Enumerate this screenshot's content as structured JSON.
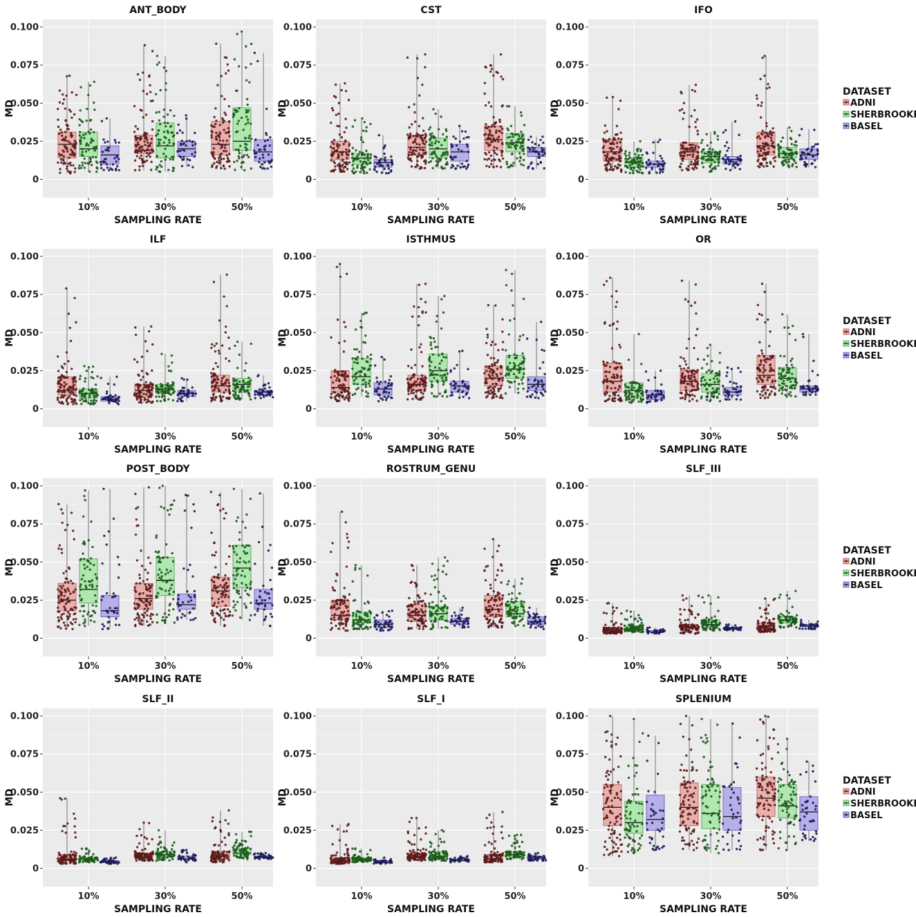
{
  "chart_data": {
    "type": "boxplot",
    "x_label": "SAMPLING RATE",
    "y_label": "MD",
    "categories": [
      "10%",
      "30%",
      "50%"
    ],
    "y_range": [
      -0.012,
      0.105
    ],
    "y_ticks": [
      0,
      0.025,
      0.05,
      0.075,
      0.1
    ],
    "y_tick_labels": [
      "0",
      "0.025",
      "0.050",
      "0.075",
      "0.100"
    ],
    "legend": {
      "title": "DATASET",
      "entries": [
        {
          "name": "ADNI",
          "fill": "#e8a6a2",
          "stroke": "#b85450",
          "dot": "#5a1a1a"
        },
        {
          "name": "SHERBROOKE",
          "fill": "#a6e6a6",
          "stroke": "#4e9a4e",
          "dot": "#1a5a1a"
        },
        {
          "name": "BASEL",
          "fill": "#aba6e6",
          "stroke": "#5a54b0",
          "dot": "#1a1a5a"
        }
      ]
    },
    "panels": [
      {
        "title": "ANT_BODY",
        "series": {
          "ADNI": [
            [
              0.004,
              0.014,
              0.023,
              0.031,
              0.068
            ],
            [
              0.006,
              0.017,
              0.019,
              0.029,
              0.088
            ],
            [
              0.007,
              0.016,
              0.023,
              0.038,
              0.089
            ]
          ],
          "SHERBROOKE": [
            [
              0.005,
              0.015,
              0.02,
              0.031,
              0.064
            ],
            [
              0.005,
              0.014,
              0.022,
              0.037,
              0.081
            ],
            [
              0.006,
              0.019,
              0.025,
              0.047,
              0.097
            ]
          ],
          "BASEL": [
            [
              0.006,
              0.01,
              0.016,
              0.022,
              0.04
            ],
            [
              0.008,
              0.015,
              0.02,
              0.025,
              0.042
            ],
            [
              0.007,
              0.012,
              0.018,
              0.026,
              0.083
            ]
          ]
        }
      },
      {
        "title": "CST",
        "series": {
          "ADNI": [
            [
              0.005,
              0.013,
              0.018,
              0.025,
              0.063
            ],
            [
              0.007,
              0.016,
              0.021,
              0.029,
              0.082
            ],
            [
              0.008,
              0.019,
              0.026,
              0.035,
              0.082
            ]
          ],
          "SHERBROOKE": [
            [
              0.004,
              0.01,
              0.014,
              0.017,
              0.04
            ],
            [
              0.007,
              0.014,
              0.02,
              0.027,
              0.046
            ],
            [
              0.008,
              0.018,
              0.024,
              0.03,
              0.048
            ]
          ],
          "BASEL": [
            [
              0.004,
              0.008,
              0.011,
              0.013,
              0.029
            ],
            [
              0.007,
              0.012,
              0.018,
              0.023,
              0.035
            ],
            [
              0.007,
              0.015,
              0.018,
              0.021,
              0.028
            ]
          ]
        }
      },
      {
        "title": "IFO",
        "series": {
          "ADNI": [
            [
              0.005,
              0.012,
              0.018,
              0.026,
              0.054
            ],
            [
              0.006,
              0.013,
              0.018,
              0.024,
              0.062
            ],
            [
              0.008,
              0.016,
              0.022,
              0.031,
              0.081
            ]
          ],
          "SHERBROOKE": [
            [
              0.004,
              0.008,
              0.011,
              0.014,
              0.025
            ],
            [
              0.005,
              0.011,
              0.015,
              0.018,
              0.031
            ],
            [
              0.008,
              0.014,
              0.017,
              0.021,
              0.034
            ]
          ],
          "BASEL": [
            [
              0.004,
              0.008,
              0.01,
              0.012,
              0.026
            ],
            [
              0.006,
              0.01,
              0.013,
              0.015,
              0.038
            ],
            [
              0.008,
              0.013,
              0.016,
              0.02,
              0.033
            ]
          ]
        }
      },
      {
        "title": "ILF",
        "series": {
          "ADNI": [
            [
              0.003,
              0.009,
              0.012,
              0.021,
              0.079
            ],
            [
              0.004,
              0.008,
              0.012,
              0.016,
              0.054
            ],
            [
              0.005,
              0.011,
              0.015,
              0.022,
              0.088
            ]
          ],
          "SHERBROOKE": [
            [
              0.003,
              0.007,
              0.01,
              0.013,
              0.028
            ],
            [
              0.005,
              0.01,
              0.013,
              0.016,
              0.036
            ],
            [
              0.006,
              0.012,
              0.016,
              0.02,
              0.044
            ]
          ],
          "BASEL": [
            [
              0.003,
              0.005,
              0.006,
              0.008,
              0.021
            ],
            [
              0.005,
              0.008,
              0.01,
              0.012,
              0.02
            ],
            [
              0.007,
              0.009,
              0.011,
              0.012,
              0.022
            ]
          ]
        }
      },
      {
        "title": "ISTHMUS",
        "series": {
          "ADNI": [
            [
              0.005,
              0.011,
              0.014,
              0.025,
              0.095
            ],
            [
              0.006,
              0.012,
              0.016,
              0.022,
              0.082
            ],
            [
              0.007,
              0.015,
              0.02,
              0.028,
              0.068
            ]
          ],
          "SHERBROOKE": [
            [
              0.008,
              0.016,
              0.021,
              0.033,
              0.063
            ],
            [
              0.008,
              0.018,
              0.025,
              0.036,
              0.074
            ],
            [
              0.01,
              0.02,
              0.026,
              0.035,
              0.091
            ]
          ],
          "BASEL": [
            [
              0.005,
              0.009,
              0.013,
              0.017,
              0.034
            ],
            [
              0.007,
              0.011,
              0.015,
              0.018,
              0.038
            ],
            [
              0.007,
              0.012,
              0.016,
              0.021,
              0.057
            ]
          ]
        }
      },
      {
        "title": "OR",
        "series": {
          "ADNI": [
            [
              0.005,
              0.011,
              0.018,
              0.03,
              0.086
            ],
            [
              0.005,
              0.012,
              0.018,
              0.025,
              0.084
            ],
            [
              0.007,
              0.016,
              0.022,
              0.035,
              0.082
            ]
          ],
          "SHERBROOKE": [
            [
              0.004,
              0.008,
              0.012,
              0.017,
              0.049
            ],
            [
              0.005,
              0.011,
              0.016,
              0.023,
              0.042
            ],
            [
              0.008,
              0.015,
              0.02,
              0.027,
              0.062
            ]
          ],
          "BASEL": [
            [
              0.004,
              0.006,
              0.009,
              0.012,
              0.025
            ],
            [
              0.006,
              0.009,
              0.011,
              0.014,
              0.027
            ],
            [
              0.009,
              0.011,
              0.013,
              0.015,
              0.049
            ]
          ]
        }
      },
      {
        "title": "POST_BODY",
        "series": {
          "ADNI": [
            [
              0.006,
              0.018,
              0.025,
              0.036,
              0.088
            ],
            [
              0.008,
              0.019,
              0.026,
              0.036,
              0.099
            ],
            [
              0.008,
              0.021,
              0.031,
              0.04,
              0.096
            ]
          ],
          "SHERBROOKE": [
            [
              0.008,
              0.023,
              0.032,
              0.052,
              0.097
            ],
            [
              0.01,
              0.028,
              0.038,
              0.053,
              0.1
            ],
            [
              0.012,
              0.033,
              0.046,
              0.061,
              0.098
            ]
          ],
          "BASEL": [
            [
              0.006,
              0.014,
              0.018,
              0.028,
              0.098
            ],
            [
              0.012,
              0.019,
              0.022,
              0.029,
              0.094
            ],
            [
              0.008,
              0.019,
              0.023,
              0.032,
              0.095
            ]
          ]
        }
      },
      {
        "title": "ROSTRUM_GENU",
        "series": {
          "ADNI": [
            [
              0.005,
              0.012,
              0.015,
              0.025,
              0.083
            ],
            [
              0.006,
              0.011,
              0.015,
              0.022,
              0.048
            ],
            [
              0.007,
              0.014,
              0.019,
              0.028,
              0.065
            ]
          ],
          "SHERBROOKE": [
            [
              0.006,
              0.01,
              0.012,
              0.017,
              0.048
            ],
            [
              0.006,
              0.012,
              0.016,
              0.021,
              0.053
            ],
            [
              0.008,
              0.014,
              0.016,
              0.024,
              0.039
            ]
          ],
          "BASEL": [
            [
              0.005,
              0.007,
              0.009,
              0.012,
              0.018
            ],
            [
              0.007,
              0.009,
              0.011,
              0.013,
              0.02
            ],
            [
              0.006,
              0.009,
              0.011,
              0.014,
              0.02
            ]
          ]
        }
      },
      {
        "title": "SLF_III",
        "series": {
          "ADNI": [
            [
              0.003,
              0.004,
              0.005,
              0.007,
              0.023
            ],
            [
              0.003,
              0.006,
              0.007,
              0.009,
              0.028
            ],
            [
              0.004,
              0.006,
              0.008,
              0.01,
              0.026
            ]
          ],
          "SHERBROOKE": [
            [
              0.004,
              0.005,
              0.006,
              0.008,
              0.018
            ],
            [
              0.005,
              0.008,
              0.009,
              0.012,
              0.028
            ],
            [
              0.007,
              0.01,
              0.012,
              0.014,
              0.031
            ]
          ],
          "BASEL": [
            [
              0.003,
              0.004,
              0.004,
              0.005,
              0.007
            ],
            [
              0.005,
              0.006,
              0.006,
              0.007,
              0.009
            ],
            [
              0.006,
              0.008,
              0.008,
              0.009,
              0.012
            ]
          ]
        }
      },
      {
        "title": "SLF_II",
        "series": {
          "ADNI": [
            [
              0.003,
              0.005,
              0.006,
              0.009,
              0.046
            ],
            [
              0.005,
              0.007,
              0.009,
              0.01,
              0.03
            ],
            [
              0.004,
              0.006,
              0.008,
              0.011,
              0.038
            ]
          ],
          "SHERBROOKE": [
            [
              0.004,
              0.005,
              0.006,
              0.007,
              0.013
            ],
            [
              0.005,
              0.008,
              0.009,
              0.011,
              0.025
            ],
            [
              0.006,
              0.009,
              0.01,
              0.013,
              0.024
            ]
          ],
          "BASEL": [
            [
              0.003,
              0.004,
              0.004,
              0.005,
              0.007
            ],
            [
              0.004,
              0.006,
              0.006,
              0.008,
              0.012
            ],
            [
              0.006,
              0.007,
              0.007,
              0.008,
              0.01
            ]
          ]
        }
      },
      {
        "title": "SLF_I",
        "series": {
          "ADNI": [
            [
              0.003,
              0.004,
              0.005,
              0.007,
              0.029
            ],
            [
              0.005,
              0.007,
              0.008,
              0.01,
              0.033
            ],
            [
              0.004,
              0.005,
              0.006,
              0.009,
              0.037
            ]
          ],
          "SHERBROOKE": [
            [
              0.004,
              0.005,
              0.006,
              0.007,
              0.013
            ],
            [
              0.005,
              0.007,
              0.008,
              0.011,
              0.025
            ],
            [
              0.006,
              0.008,
              0.009,
              0.011,
              0.022
            ]
          ],
          "BASEL": [
            [
              0.003,
              0.004,
              0.004,
              0.005,
              0.007
            ],
            [
              0.004,
              0.005,
              0.005,
              0.006,
              0.008
            ],
            [
              0.005,
              0.006,
              0.007,
              0.008,
              0.01
            ]
          ]
        }
      },
      {
        "title": "SPLENIUM",
        "series": {
          "ADNI": [
            [
              0.008,
              0.028,
              0.04,
              0.055,
              0.1
            ],
            [
              0.012,
              0.028,
              0.04,
              0.056,
              0.1
            ],
            [
              0.012,
              0.034,
              0.046,
              0.06,
              0.1
            ]
          ],
          "SHERBROOKE": [
            [
              0.01,
              0.023,
              0.03,
              0.044,
              0.098
            ],
            [
              0.01,
              0.026,
              0.036,
              0.055,
              0.098
            ],
            [
              0.012,
              0.033,
              0.041,
              0.055,
              0.085
            ]
          ],
          "BASEL": [
            [
              0.012,
              0.025,
              0.032,
              0.048,
              0.087
            ],
            [
              0.012,
              0.025,
              0.034,
              0.053,
              0.095
            ],
            [
              0.018,
              0.025,
              0.037,
              0.047,
              0.07
            ]
          ]
        }
      }
    ]
  }
}
